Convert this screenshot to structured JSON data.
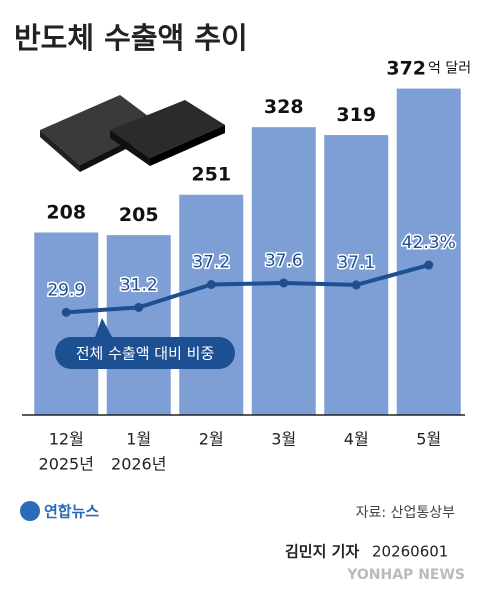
{
  "chart_data": {
    "type": "bar",
    "title": "반도체 수출액 추이",
    "categories": [
      "12월",
      "1월",
      "2월",
      "3월",
      "4월",
      "5월"
    ],
    "category_years": [
      "2025년",
      "2026년",
      null,
      null,
      null,
      null
    ],
    "unit": "억 달러",
    "series": [
      {
        "name": "반도체 수출액",
        "type": "bar",
        "color": "#7d9fd6",
        "values": [
          208,
          205,
          251,
          328,
          319,
          372
        ]
      },
      {
        "name": "전체 수출액 대비 비중",
        "type": "line",
        "axis": "y2",
        "color": "#1d4f93",
        "values": [
          29.9,
          31.2,
          37.2,
          37.6,
          37.1,
          42.3
        ],
        "value_labels": [
          "29.9",
          "31.2",
          "37.2",
          "37.6",
          "37.1",
          "42.3%"
        ]
      }
    ],
    "ylim": [
      0,
      400
    ],
    "y2lim": [
      3,
      95
    ],
    "logo": "연합뉴스",
    "source": "자료: 산업통상부",
    "byline": "김민지 기자",
    "date": "20260601",
    "watermark": "YONHAP NEWS"
  }
}
